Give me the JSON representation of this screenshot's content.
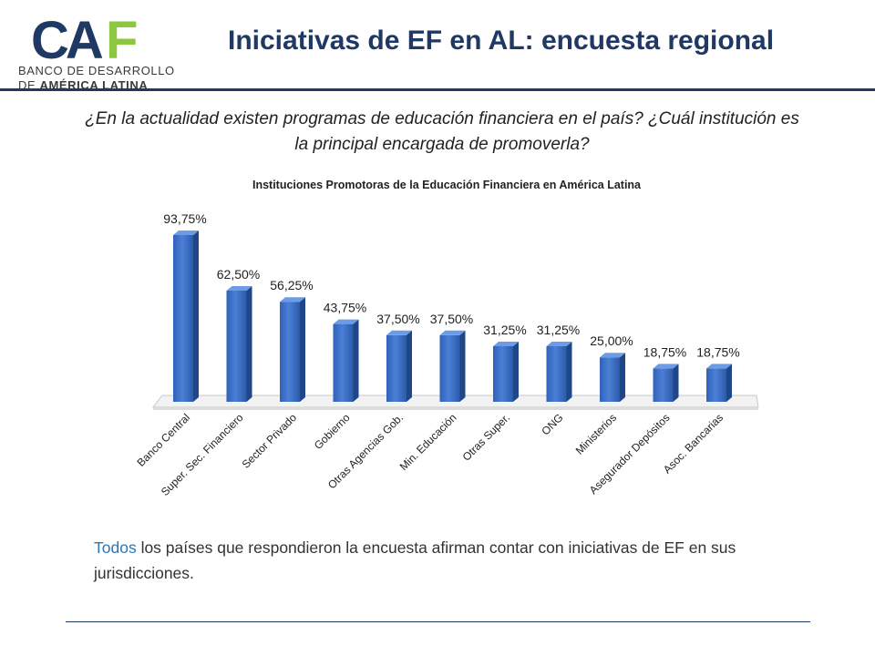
{
  "header": {
    "logo": {
      "wordmark": "CAF",
      "line1": "BANCO DE DESARROLLO",
      "line2_prefix": "DE ",
      "line2_bold": "AMÉRICA LATINA",
      "colors": {
        "navy": "#1f3864",
        "green": "#8dc63f",
        "gray": "#3a3a3a"
      }
    },
    "title": "Iniciativas de EF en AL: encuesta regional"
  },
  "question": "¿En la actualidad existen programas de educación financiera en el país? ¿Cuál institución es la principal encargada de promoverla?",
  "chart_data": {
    "type": "bar",
    "style": "3d-column",
    "title": "Instituciones Promotoras de la Educación Financiera en América Latina",
    "categories": [
      "Banco Central",
      "Super. Sec. Financiero",
      "Sector Privado",
      "Gobierno",
      "Otras Agencias Gob.",
      "Min. Educación",
      "Otras Super.",
      "ONG",
      "Ministerios",
      "Asegurador Depósitos",
      "Asoc. Bancarias"
    ],
    "values": [
      93.75,
      62.5,
      56.25,
      43.75,
      37.5,
      37.5,
      31.25,
      31.25,
      25.0,
      18.75,
      18.75
    ],
    "data_labels": [
      "93,75%",
      "62,50%",
      "56,25%",
      "43,75%",
      "37,50%",
      "37,50%",
      "31,25%",
      "31,25%",
      "25,00%",
      "18,75%",
      "18,75%"
    ],
    "ylim": [
      0,
      100
    ],
    "grid": false,
    "legend": false,
    "colors": {
      "bar_front": "#3a6fc4",
      "bar_light": "#5b8ede",
      "bar_side": "#1f4788",
      "bar_top": "#6d9ce6",
      "floor": "#f2f2f2",
      "floor_edge": "#c8c8c8"
    }
  },
  "summary": {
    "highlight": "Todos",
    "text": " los países que respondieron la encuesta afirman contar con iniciativas de EF en sus jurisdicciones.",
    "highlight_color": "#2e75b6"
  }
}
